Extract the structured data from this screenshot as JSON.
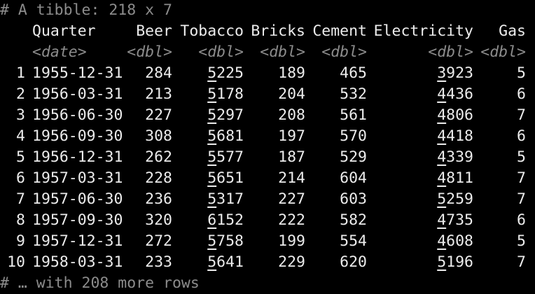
{
  "header_comment": "# A tibble: 218 x 7",
  "footer_comment": "# … with 208 more rows",
  "columns": [
    {
      "name": "Quarter",
      "type": "<date>"
    },
    {
      "name": "Beer",
      "type": "<dbl>"
    },
    {
      "name": "Tobacco",
      "type": "<dbl>"
    },
    {
      "name": "Bricks",
      "type": "<dbl>"
    },
    {
      "name": "Cement",
      "type": "<dbl>"
    },
    {
      "name": "Electricity",
      "type": "<dbl>"
    },
    {
      "name": "Gas",
      "type": "<dbl>"
    }
  ],
  "rows": [
    {
      "n": "1",
      "Quarter": "1955-12-31",
      "Beer": "284",
      "Tobacco_lead": "5",
      "Tobacco_rest": "225",
      "Bricks": "189",
      "Cement": "465",
      "Electricity_lead": "3",
      "Electricity_rest": "923",
      "Gas": "5"
    },
    {
      "n": "2",
      "Quarter": "1956-03-31",
      "Beer": "213",
      "Tobacco_lead": "5",
      "Tobacco_rest": "178",
      "Bricks": "204",
      "Cement": "532",
      "Electricity_lead": "4",
      "Electricity_rest": "436",
      "Gas": "6"
    },
    {
      "n": "3",
      "Quarter": "1956-06-30",
      "Beer": "227",
      "Tobacco_lead": "5",
      "Tobacco_rest": "297",
      "Bricks": "208",
      "Cement": "561",
      "Electricity_lead": "4",
      "Electricity_rest": "806",
      "Gas": "7"
    },
    {
      "n": "4",
      "Quarter": "1956-09-30",
      "Beer": "308",
      "Tobacco_lead": "5",
      "Tobacco_rest": "681",
      "Bricks": "197",
      "Cement": "570",
      "Electricity_lead": "4",
      "Electricity_rest": "418",
      "Gas": "6"
    },
    {
      "n": "5",
      "Quarter": "1956-12-31",
      "Beer": "262",
      "Tobacco_lead": "5",
      "Tobacco_rest": "577",
      "Bricks": "187",
      "Cement": "529",
      "Electricity_lead": "4",
      "Electricity_rest": "339",
      "Gas": "5"
    },
    {
      "n": "6",
      "Quarter": "1957-03-31",
      "Beer": "228",
      "Tobacco_lead": "5",
      "Tobacco_rest": "651",
      "Bricks": "214",
      "Cement": "604",
      "Electricity_lead": "4",
      "Electricity_rest": "811",
      "Gas": "7"
    },
    {
      "n": "7",
      "Quarter": "1957-06-30",
      "Beer": "236",
      "Tobacco_lead": "5",
      "Tobacco_rest": "317",
      "Bricks": "227",
      "Cement": "603",
      "Electricity_lead": "5",
      "Electricity_rest": "259",
      "Gas": "7"
    },
    {
      "n": "8",
      "Quarter": "1957-09-30",
      "Beer": "320",
      "Tobacco_lead": "6",
      "Tobacco_rest": "152",
      "Bricks": "222",
      "Cement": "582",
      "Electricity_lead": "4",
      "Electricity_rest": "735",
      "Gas": "6"
    },
    {
      "n": "9",
      "Quarter": "1957-12-31",
      "Beer": "272",
      "Tobacco_lead": "5",
      "Tobacco_rest": "758",
      "Bricks": "199",
      "Cement": "554",
      "Electricity_lead": "4",
      "Electricity_rest": "608",
      "Gas": "5"
    },
    {
      "n": "10",
      "Quarter": "1958-03-31",
      "Beer": "233",
      "Tobacco_lead": "5",
      "Tobacco_rest": "641",
      "Bricks": "229",
      "Cement": "620",
      "Electricity_lead": "5",
      "Electricity_rest": "196",
      "Gas": "7"
    }
  ],
  "colors": {
    "background": "#000000",
    "text": "#ececec",
    "comment": "#8c8c8c"
  }
}
